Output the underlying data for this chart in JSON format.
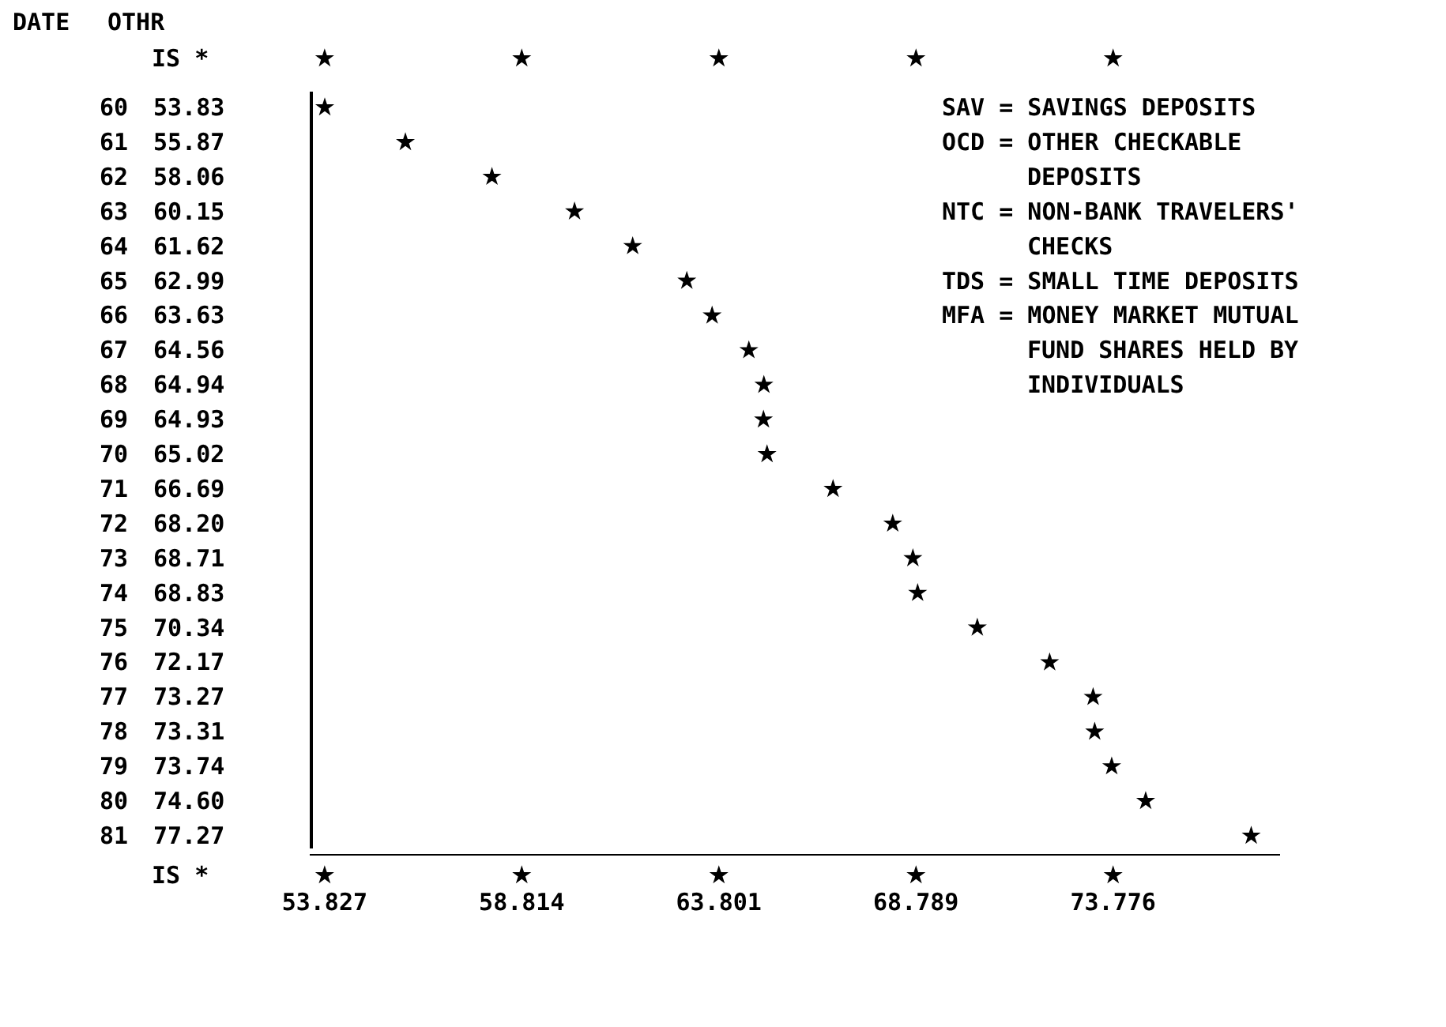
{
  "chart_data": {
    "type": "scatter",
    "orientation": "horizontal",
    "xlabel": "OTHR",
    "ylabel": "DATE",
    "categories": [
      "60",
      "61",
      "62",
      "63",
      "64",
      "65",
      "66",
      "67",
      "68",
      "69",
      "70",
      "71",
      "72",
      "73",
      "74",
      "75",
      "76",
      "77",
      "78",
      "79",
      "80",
      "81"
    ],
    "values": [
      53.83,
      55.87,
      58.06,
      60.15,
      61.62,
      62.99,
      63.63,
      64.56,
      64.94,
      64.93,
      65.02,
      66.69,
      68.2,
      68.71,
      68.83,
      70.34,
      72.17,
      73.27,
      73.31,
      73.74,
      74.6,
      77.27
    ],
    "value_labels": [
      "53.83",
      "55.87",
      "58.06",
      "60.15",
      "61.62",
      "62.99",
      "63.63",
      "64.56",
      "64.94",
      "64.93",
      "65.02",
      "66.69",
      "68.20",
      "68.71",
      "68.83",
      "70.34",
      "72.17",
      "73.27",
      "73.31",
      "73.74",
      "74.60",
      "77.27"
    ],
    "color": "#000000",
    "marker": "star",
    "xlim": [
      53.45,
      78.0
    ],
    "xticks": [
      53.827,
      58.814,
      63.801,
      68.789,
      73.776
    ],
    "annotations": [
      "IS *",
      "IS *",
      "SAV = SAVINGS DEPOSITS",
      "OCD = OTHER CHECKABLE DEPOSITS",
      "NTC = NON-BANK TRAVELERS' CHECKS",
      "TDS = SMALL TIME DEPOSITS",
      "MFA = MONEY MARKET MUTUAL FUND SHARES HELD BY INDIVIDUALS"
    ],
    "data_labels": true
  }
}
